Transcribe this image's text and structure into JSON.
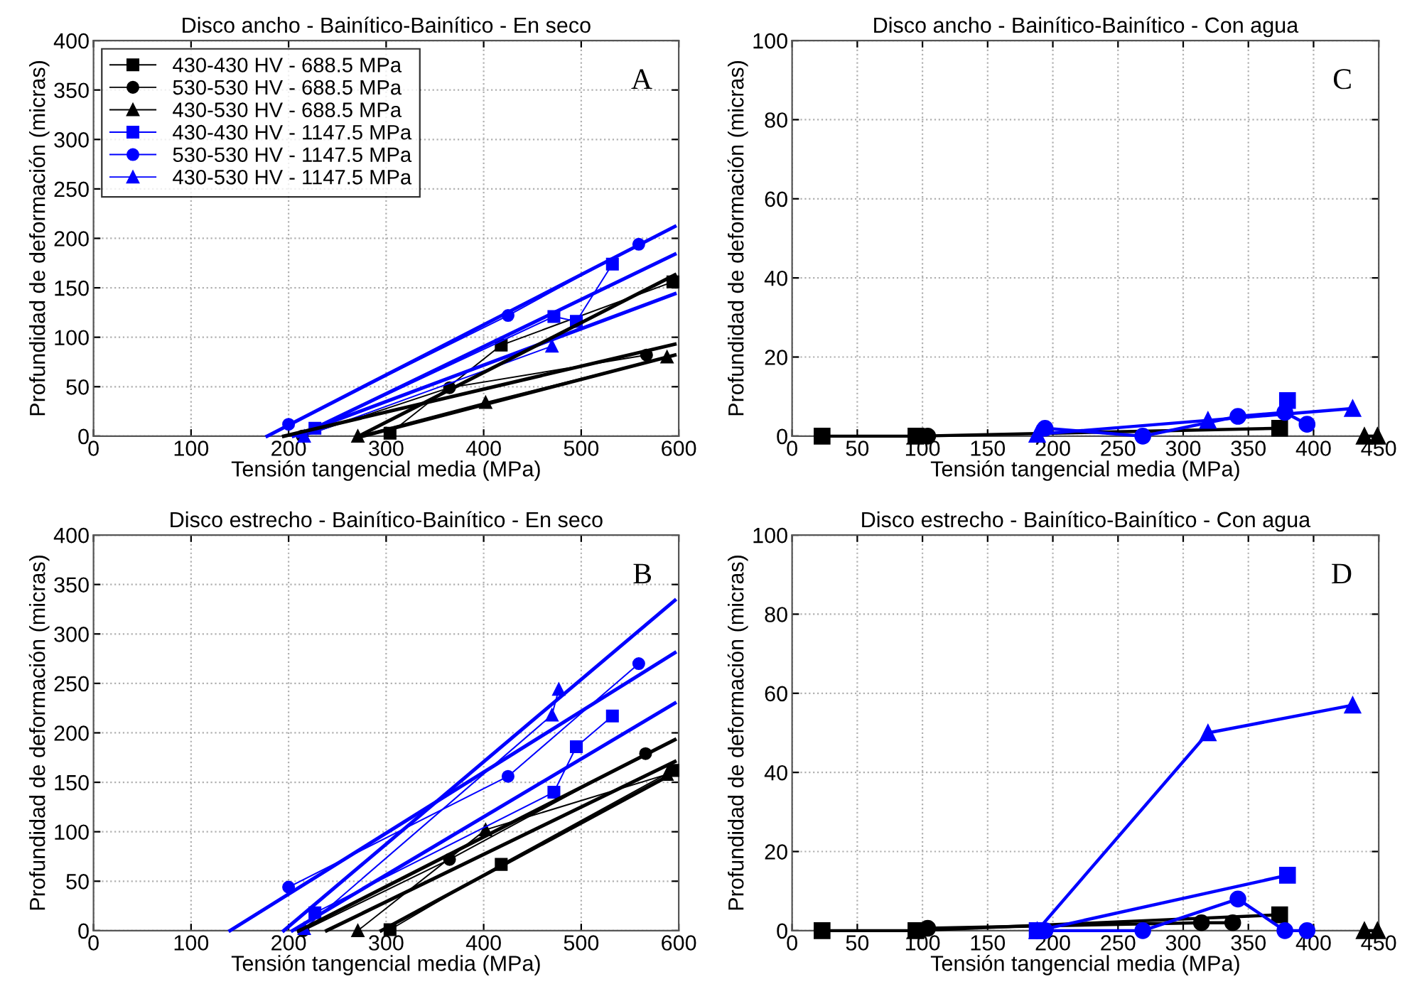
{
  "chart_data": [
    {
      "type": "line",
      "title": "Disco ancho - Bainítico-Bainítico - En seco",
      "xlabel": "Tensión tangencial media (MPa)",
      "ylabel": "Profundidad de deformación (micras)",
      "xlim": [
        0,
        600
      ],
      "xticks": [
        0,
        100,
        200,
        300,
        400,
        500,
        600
      ],
      "ylim": [
        0,
        400
      ],
      "yticks": [
        0,
        50,
        100,
        150,
        200,
        250,
        300,
        350,
        400
      ],
      "grid": true,
      "legend": "top left",
      "annotations": [
        "A"
      ],
      "series": [
        {
          "name": "430-430 HV - 688.5 MPa",
          "color": "#000000",
          "marker": "square",
          "x": [
            304,
            418,
            594
          ],
          "values": [
            3,
            92,
            156
          ]
        },
        {
          "name": "530-530 HV - 688.5 MPa",
          "color": "#000000",
          "marker": "circle",
          "x": [
            214,
            365,
            567
          ],
          "values": [
            0,
            49,
            82
          ]
        },
        {
          "name": "430-530 HV - 688.5 MPa",
          "color": "#000000",
          "marker": "triangle",
          "x": [
            271,
            402,
            588
          ],
          "values": [
            0,
            34,
            80
          ]
        },
        {
          "name": "430-430 HV - 1147.5 MPa",
          "color": "#0000ff",
          "marker": "square",
          "x": [
            227,
            472,
            495,
            532
          ],
          "values": [
            8,
            121,
            116,
            174
          ]
        },
        {
          "name": "530-530 HV - 1147.5 MPa",
          "color": "#0000ff",
          "marker": "circle",
          "x": [
            200,
            425,
            559
          ],
          "values": [
            12,
            122,
            194
          ]
        },
        {
          "name": "430-530 HV - 1147.5 MPa",
          "color": "#0000ff",
          "marker": "triangle",
          "x": [
            216,
            470
          ],
          "values": [
            0,
            91
          ]
        },
        {
          "color": "#0000ff",
          "marker": "none",
          "x": [
            178,
            596
          ],
          "values": [
            0,
            212
          ]
        },
        {
          "color": "#0000ff",
          "marker": "none",
          "x": [
            210,
            596
          ],
          "values": [
            0,
            184
          ]
        },
        {
          "color": "#0000ff",
          "marker": "none",
          "x": [
            205,
            596
          ],
          "values": [
            0,
            144
          ]
        },
        {
          "color": "#000000",
          "marker": "none",
          "x": [
            272,
            596
          ],
          "values": [
            0,
            163
          ]
        },
        {
          "color": "#000000",
          "marker": "none",
          "x": [
            195,
            596
          ],
          "values": [
            0,
            93
          ]
        },
        {
          "color": "#000000",
          "marker": "none",
          "x": [
            276,
            596
          ],
          "values": [
            0,
            82
          ]
        }
      ]
    },
    {
      "type": "line",
      "title": "Disco ancho - Bainítico-Bainítico - Con agua",
      "xlabel": "Tensión tangencial media (MPa)",
      "ylabel": "Profundidad de deformación (micras)",
      "xlim": [
        0,
        450
      ],
      "xticks": [
        0,
        50,
        100,
        150,
        200,
        250,
        300,
        350,
        400,
        450
      ],
      "ylim": [
        0,
        100
      ],
      "yticks": [
        0,
        20,
        40,
        60,
        80,
        100
      ],
      "grid": true,
      "annotations": [
        "C"
      ],
      "series": [
        {
          "color": "#000000",
          "marker": "square",
          "x": [
            23,
            95,
            374
          ],
          "values": [
            0,
            0,
            2
          ]
        },
        {
          "color": "#000000",
          "marker": "circle",
          "x": [
            104
          ],
          "values": [
            0
          ]
        },
        {
          "color": "#000000",
          "marker": "triangle",
          "x": [
            439,
            449
          ],
          "values": [
            0,
            0
          ]
        },
        {
          "color": "#0000ff",
          "marker": "square",
          "x": [
            380
          ],
          "values": [
            9
          ]
        },
        {
          "color": "#0000ff",
          "marker": "circle",
          "x": [
            194,
            269,
            342,
            378,
            395
          ],
          "values": [
            2,
            0,
            5,
            6,
            3
          ]
        },
        {
          "color": "#0000ff",
          "marker": "triangle",
          "x": [
            188,
            319,
            430
          ],
          "values": [
            0.5,
            4,
            7
          ]
        }
      ]
    },
    {
      "type": "line",
      "title": "Disco estrecho - Bainítico-Bainítico - En seco",
      "xlabel": "Tensión tangencial media (MPa)",
      "ylabel": "Profundidad de deformación (micras)",
      "xlim": [
        0,
        600
      ],
      "xticks": [
        0,
        100,
        200,
        300,
        400,
        500,
        600
      ],
      "ylim": [
        0,
        400
      ],
      "yticks": [
        0,
        50,
        100,
        150,
        200,
        250,
        300,
        350,
        400
      ],
      "grid": true,
      "annotations": [
        "B"
      ],
      "series": [
        {
          "color": "#000000",
          "marker": "square",
          "x": [
            304,
            418,
            594
          ],
          "values": [
            1,
            67,
            162
          ]
        },
        {
          "color": "#000000",
          "marker": "circle",
          "x": [
            215,
            365,
            566
          ],
          "values": [
            0,
            72,
            179
          ]
        },
        {
          "color": "#000000",
          "marker": "triangle",
          "x": [
            271,
            402,
            588
          ],
          "values": [
            0,
            102,
            158
          ]
        },
        {
          "color": "#0000ff",
          "marker": "square",
          "x": [
            227,
            472,
            495,
            532
          ],
          "values": [
            18,
            140,
            186,
            217
          ]
        },
        {
          "color": "#0000ff",
          "marker": "circle",
          "x": [
            200,
            425,
            559
          ],
          "values": [
            44,
            156,
            270
          ]
        },
        {
          "color": "#0000ff",
          "marker": "triangle",
          "x": [
            216,
            470,
            477
          ],
          "values": [
            2,
            218,
            244
          ]
        },
        {
          "color": "#0000ff",
          "marker": "none",
          "x": [
            140,
            596
          ],
          "values": [
            0,
            281
          ]
        },
        {
          "color": "#0000ff",
          "marker": "none",
          "x": [
            195,
            596
          ],
          "values": [
            0,
            334
          ]
        },
        {
          "color": "#0000ff",
          "marker": "none",
          "x": [
            204,
            596
          ],
          "values": [
            0,
            230
          ]
        },
        {
          "color": "#000000",
          "marker": "none",
          "x": [
            211,
            596
          ],
          "values": [
            0,
            193
          ]
        },
        {
          "color": "#000000",
          "marker": "none",
          "x": [
            239,
            596
          ],
          "values": [
            0,
            171
          ]
        },
        {
          "color": "#000000",
          "marker": "none",
          "x": [
            295,
            596
          ],
          "values": [
            0,
            160
          ]
        }
      ]
    },
    {
      "type": "line",
      "title": "Disco estrecho - Bainítico-Bainítico - Con agua",
      "xlabel": "Tensión tangencial media (MPa)",
      "ylabel": "Profundidad de deformación (micras)",
      "xlim": [
        0,
        450
      ],
      "xticks": [
        0,
        50,
        100,
        150,
        200,
        250,
        300,
        350,
        400,
        450
      ],
      "ylim": [
        0,
        100
      ],
      "yticks": [
        0,
        20,
        40,
        60,
        80,
        100
      ],
      "grid": true,
      "annotations": [
        "D"
      ],
      "series": [
        {
          "color": "#000000",
          "marker": "square",
          "x": [
            23,
            95,
            374
          ],
          "values": [
            0,
            0,
            4
          ]
        },
        {
          "color": "#000000",
          "marker": "circle",
          "x": [
            104,
            314,
            338
          ],
          "values": [
            0.6,
            2,
            2
          ]
        },
        {
          "color": "#000000",
          "marker": "triangle",
          "x": [
            439,
            449
          ],
          "values": [
            0,
            0
          ]
        },
        {
          "color": "#0000ff",
          "marker": "square",
          "x": [
            188,
            380
          ],
          "values": [
            0,
            14
          ]
        },
        {
          "color": "#0000ff",
          "marker": "circle",
          "x": [
            194,
            269,
            342,
            378,
            395
          ],
          "values": [
            0,
            0,
            8,
            0,
            0
          ]
        },
        {
          "color": "#0000ff",
          "marker": "triangle",
          "x": [
            188,
            319,
            430
          ],
          "values": [
            0,
            50,
            57
          ]
        }
      ]
    }
  ]
}
